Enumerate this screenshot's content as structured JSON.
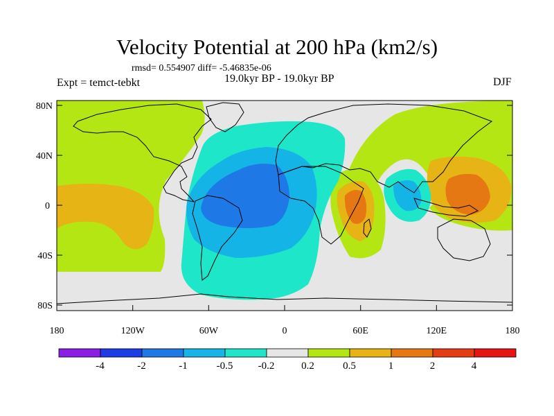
{
  "title": "Velocity Potential at 200 hPa (km2/s)",
  "stats": "rmsd= 0.554907 diff= -5.46835e-06",
  "experiment": "Expt = temct-tebkt",
  "period": "19.0kyr BP - 19.0kyr BP",
  "season": "DJF",
  "map": {
    "lat_ticks": [
      "80N",
      "40N",
      "0",
      "40S",
      "80S"
    ],
    "lon_ticks": [
      "180",
      "120W",
      "60W",
      "0",
      "60E",
      "120E",
      "180"
    ]
  },
  "colorbar": {
    "labels": [
      "-4",
      "-2",
      "-1",
      "-0.5",
      "-0.2",
      "0.2",
      "0.5",
      "1",
      "2",
      "4"
    ],
    "colors": [
      "#8a1ee6",
      "#1e3ce6",
      "#1e78e6",
      "#14b4e6",
      "#1ee6c8",
      "#e6e6e6",
      "#b4e614",
      "#e6b414",
      "#e67814",
      "#e63c14",
      "#e61414"
    ]
  },
  "palette": {
    "neutral": "#e6e6e6",
    "pos_weak": "#b4e614",
    "pos_mid": "#e6b414",
    "pos_strong": "#e67814",
    "neg_weak": "#1ee6c8",
    "neg_mid": "#14b4e6",
    "neg_strong": "#1e78e6",
    "coast": "#000000"
  }
}
